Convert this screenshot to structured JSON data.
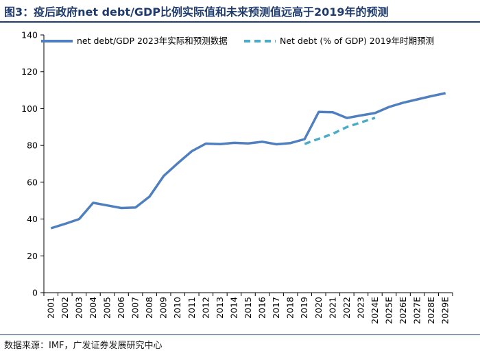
{
  "header": {
    "title": "图3：疫后政府net debt/GDP比例实际值和未来预测值远高于2019年的预测"
  },
  "footer": {
    "source": "数据来源：IMF，广发证券发展研究中心"
  },
  "chart_data": {
    "type": "line",
    "title": "图3：疫后政府net debt/GDP比例实际值和未来预测值远高于2019年的预测",
    "xlabel": "",
    "ylabel": "",
    "ylim": [
      0,
      140
    ],
    "yticks": [
      0,
      20,
      40,
      60,
      80,
      100,
      120,
      140
    ],
    "grid": false,
    "legend_position": "top",
    "colors": {
      "actual": "#4f7fbe",
      "forecast": "#4bacc6"
    },
    "categories": [
      "2001",
      "2002",
      "2003",
      "2004",
      "2005",
      "2006",
      "2007",
      "2008",
      "2009",
      "2010",
      "2011",
      "2012",
      "2013",
      "2014",
      "2015",
      "2016",
      "2017",
      "2018",
      "2019",
      "2020",
      "2021",
      "2022",
      "2023",
      "2024E",
      "2025E",
      "2026E",
      "2027E",
      "2028E",
      "2029E"
    ],
    "series": [
      {
        "name": "net debt/GDP 2023年实际和预测数据",
        "style": "solid",
        "values": [
          35.0,
          37.4,
          40.0,
          48.8,
          47.4,
          46.0,
          46.3,
          52.2,
          63.4,
          70.3,
          76.9,
          81.0,
          80.7,
          81.4,
          81.1,
          82.0,
          80.6,
          81.3,
          83.4,
          98.2,
          98.0,
          94.9,
          96.3,
          97.6,
          100.9,
          103.2,
          105.0,
          106.8,
          108.4
        ]
      },
      {
        "name": "Net debt (% of GDP) 2019年时期预测",
        "style": "dashed",
        "values": [
          null,
          null,
          null,
          null,
          null,
          null,
          null,
          null,
          null,
          null,
          null,
          null,
          null,
          null,
          null,
          null,
          null,
          null,
          80.8,
          83.6,
          86.3,
          90.0,
          92.5,
          95.0,
          null,
          null,
          null,
          null,
          null
        ]
      }
    ]
  }
}
